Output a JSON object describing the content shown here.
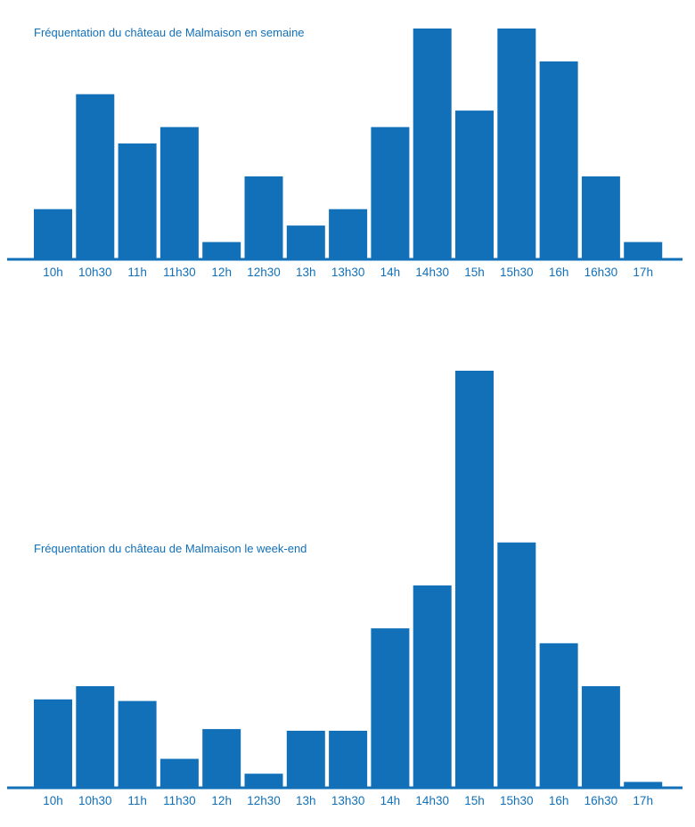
{
  "accent_color": "#1170b8",
  "chart_data": [
    {
      "type": "bar",
      "title": "Fréquentation du château de Malmaison en semaine",
      "xlabel": "",
      "ylabel": "",
      "categories": [
        "10h",
        "10h30",
        "11h",
        "11h30",
        "12h",
        "12h30",
        "13h",
        "13h30",
        "14h",
        "14h30",
        "15h",
        "15h30",
        "16h",
        "16h30",
        "17h"
      ],
      "values": [
        3,
        10,
        7,
        8,
        1,
        5,
        2,
        3,
        8,
        14,
        9,
        14,
        12,
        5,
        1
      ],
      "ylim": [
        0,
        14
      ],
      "grid": false
    },
    {
      "type": "bar",
      "title": "Fréquentation du château de Malmaison le week-end",
      "xlabel": "",
      "ylabel": "",
      "categories": [
        "10h",
        "10h30",
        "11h",
        "11h30",
        "12h",
        "12h30",
        "13h",
        "13h30",
        "14h",
        "14h30",
        "15h",
        "15h30",
        "16h",
        "16h30",
        "17h"
      ],
      "values": [
        5.3,
        6.1,
        5.2,
        1.7,
        3.5,
        0.8,
        3.4,
        3.4,
        9.6,
        12.2,
        25.2,
        14.8,
        8.7,
        6.1,
        0.3
      ],
      "ylim": [
        0,
        25.2
      ],
      "grid": false
    }
  ]
}
